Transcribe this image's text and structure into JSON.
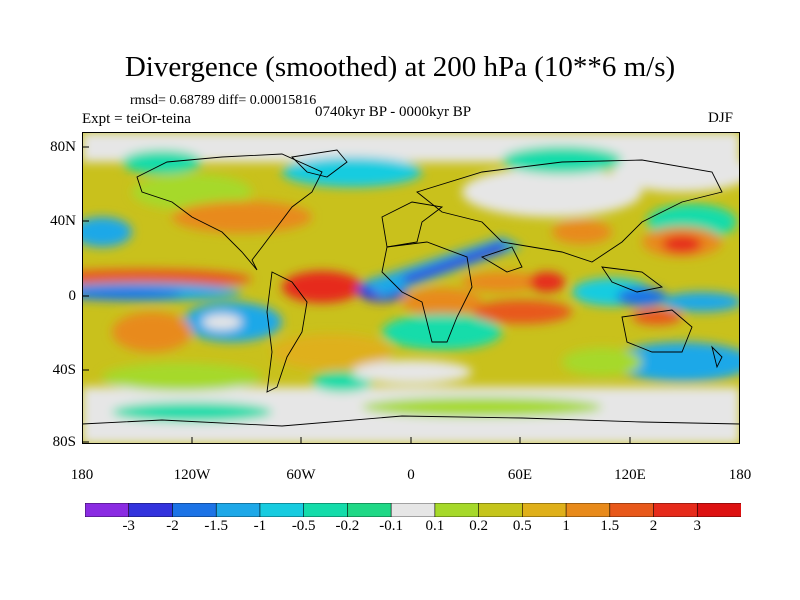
{
  "title": "Divergence (smoothed) at 200 hPa (10**6 m/s)",
  "stats": "rmsd= 0.68789 diff= 0.00015816",
  "experiment": "Expt = teiOr-teina",
  "period": "0740kyr BP - 0000kyr BP",
  "season": "DJF",
  "lat_ticks": [
    "80N",
    "40N",
    "0",
    "40S",
    "80S"
  ],
  "lon_ticks": [
    "180",
    "120W",
    "60W",
    "0",
    "60E",
    "120E",
    "180"
  ],
  "colorbar": {
    "labels": [
      "-3",
      "-2",
      "-1.5",
      "-1",
      "-0.5",
      "-0.2",
      "-0.1",
      "0.1",
      "0.2",
      "0.5",
      "1",
      "1.5",
      "2",
      "3"
    ],
    "colors": [
      "#8a2be2",
      "#3333dd",
      "#1c73e6",
      "#1ea8e8",
      "#18cce0",
      "#14dcaa",
      "#20d886",
      "#e6e6e6",
      "#a6d92a",
      "#c5c51c",
      "#dfb01a",
      "#e88a1a",
      "#e8581a",
      "#e62a1a",
      "#dd1111"
    ]
  }
}
